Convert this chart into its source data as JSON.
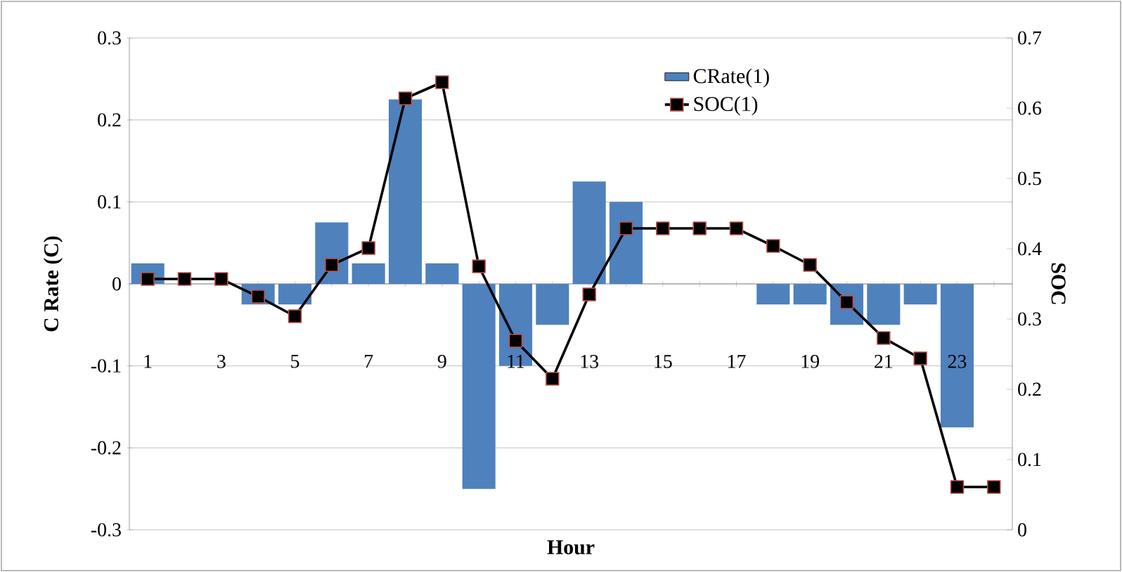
{
  "chart_data": {
    "type": "bar",
    "xlabel": "Hour",
    "ylabel": "C Rate (C)",
    "y2label": "SOC",
    "categories": [
      "1",
      null,
      "3",
      null,
      "5",
      null,
      "7",
      null,
      "9",
      null,
      "11",
      null,
      "13",
      null,
      "15",
      null,
      "17",
      null,
      "19",
      null,
      "21",
      null,
      "23",
      null
    ],
    "series": [
      {
        "name": "CRate(1)",
        "type": "bar",
        "color": "#4f81bd",
        "values": [
          0.025,
          0,
          0,
          -0.025,
          -0.025,
          0.075,
          0.025,
          0.225,
          0.025,
          -0.25,
          -0.1,
          -0.05,
          0.125,
          0.1,
          0,
          0,
          0,
          -0.025,
          -0.025,
          -0.05,
          -0.05,
          -0.025,
          -0.175,
          0
        ]
      },
      {
        "name": "SOC(1)",
        "type": "line",
        "axis": "y2",
        "color": "#000000",
        "marker": "square",
        "values": [
          0.357,
          0.357,
          0.357,
          0.332,
          0.304,
          0.377,
          0.401,
          0.614,
          0.637,
          0.375,
          0.269,
          0.215,
          0.335,
          0.429,
          0.429,
          0.429,
          0.429,
          0.404,
          0.377,
          0.324,
          0.273,
          0.244,
          0.061,
          0.061
        ]
      }
    ],
    "ylim": [
      -0.3,
      0.3
    ],
    "yticks": [
      -0.3,
      -0.2,
      -0.1,
      0,
      0.1,
      0.2,
      0.3
    ],
    "y2lim": [
      0,
      0.7
    ],
    "y2ticks": [
      0,
      0.1,
      0.2,
      0.3,
      0.4,
      0.5,
      0.6,
      0.7
    ],
    "grid": "y",
    "legend": "top right"
  }
}
